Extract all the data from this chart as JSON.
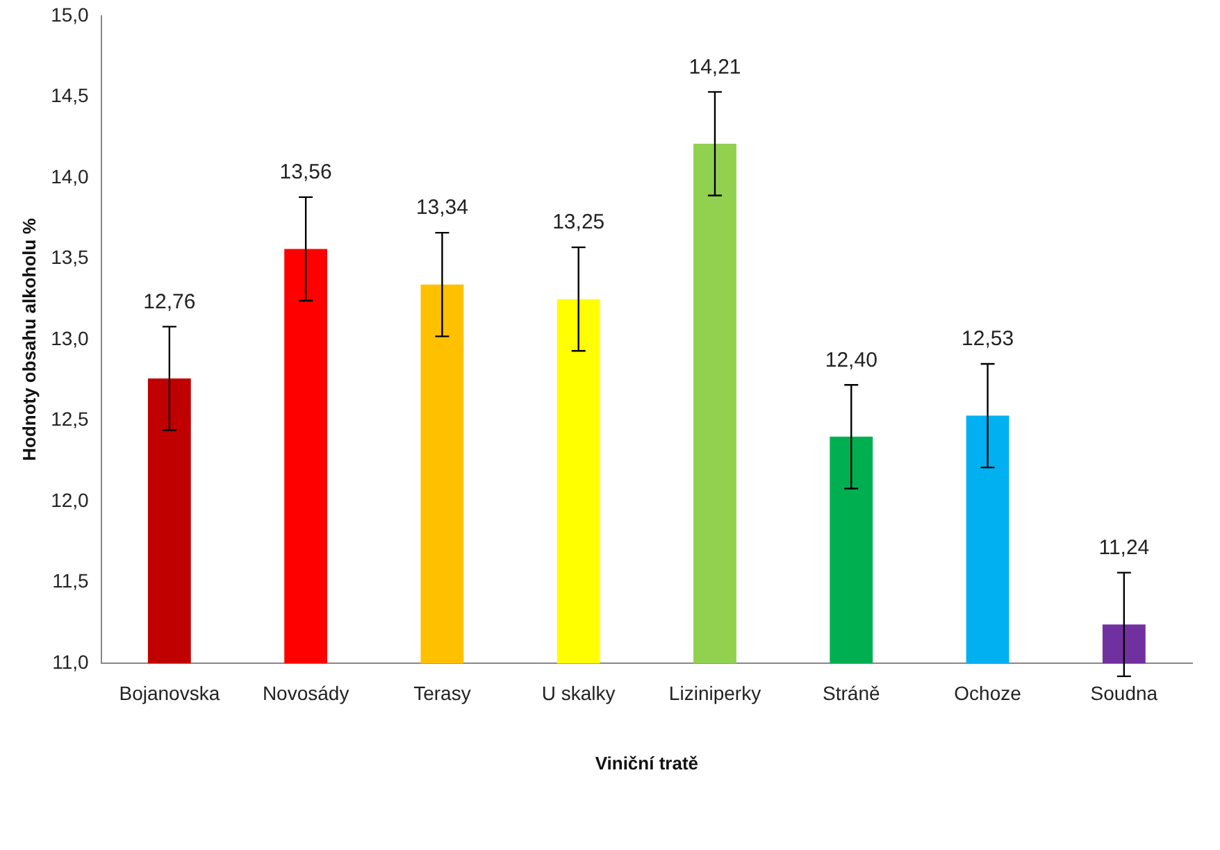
{
  "chart_data": {
    "type": "bar",
    "xlabel": "Viniční tratě",
    "ylabel": "Hodnoty obsahu alkoholu %",
    "categories": [
      "Bojanovska",
      "Novosády",
      "Terasy",
      "U skalky",
      "Liziniperky",
      "Stráně",
      "Ochoze",
      "Soudna"
    ],
    "values": [
      12.76,
      13.56,
      13.34,
      13.25,
      14.21,
      12.4,
      12.53,
      11.24
    ],
    "colors": [
      "#c00000",
      "#ff0000",
      "#ffc000",
      "#ffff00",
      "#92d050",
      "#00b050",
      "#00b0f0",
      "#7030a0"
    ],
    "errors": [
      0.32,
      0.32,
      0.32,
      0.32,
      0.32,
      0.32,
      0.32,
      0.32
    ],
    "value_labels": [
      "12,76",
      "13,56",
      "13,34",
      "13,25",
      "14,21",
      "12,40",
      "12,53",
      "11,24"
    ],
    "ylim": [
      11,
      15
    ],
    "yticks": [
      {
        "value": 11,
        "label": "11,0"
      },
      {
        "value": 11.5,
        "label": "11,5"
      },
      {
        "value": 12,
        "label": "12,0"
      },
      {
        "value": 12.5,
        "label": "12,5"
      },
      {
        "value": 13,
        "label": "13,0"
      },
      {
        "value": 13.5,
        "label": "13,5"
      },
      {
        "value": 14,
        "label": "14,0"
      },
      {
        "value": 14.5,
        "label": "14,5"
      },
      {
        "value": 15,
        "label": "15,0"
      }
    ],
    "grid": false,
    "legend": false
  }
}
